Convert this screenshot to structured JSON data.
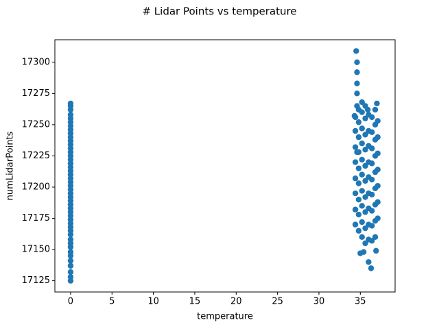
{
  "chart_data": {
    "type": "scatter",
    "title": "# Lidar Points vs temperature",
    "x_label": "temperature",
    "y_label": "numLidarPoints",
    "xlim": [
      -1.9,
      39.2
    ],
    "ylim": [
      17116,
      17318
    ],
    "xticks": [
      0,
      5,
      10,
      15,
      20,
      25,
      30,
      35
    ],
    "yticks": [
      17125,
      17150,
      17175,
      17200,
      17225,
      17250,
      17275,
      17300
    ],
    "grid": false,
    "color": "#1f77b4",
    "x": [
      0,
      0,
      0,
      0,
      0,
      0,
      0,
      0,
      0,
      0,
      0,
      0,
      0,
      0,
      0,
      0,
      0,
      0,
      0,
      0,
      0,
      0,
      0,
      0,
      0,
      0,
      0,
      0,
      0,
      0,
      0,
      0,
      0,
      0,
      0,
      0,
      0,
      0,
      0,
      0,
      0,
      0,
      0,
      0,
      0,
      0,
      34.4,
      34.4,
      34.4,
      34.4,
      34.4,
      34.4,
      34.4,
      34.4,
      34.6,
      34.6,
      34.6,
      34.6,
      34.6,
      34.5,
      34.8,
      34.8,
      34.8,
      34.8,
      34.8,
      34.8,
      34.8,
      34.8,
      34.8,
      35.2,
      35.2,
      35.2,
      35.2,
      35.2,
      35.2,
      35.2,
      35.2,
      35.2,
      35.2,
      35.6,
      35.6,
      35.6,
      35.6,
      35.6,
      35.6,
      35.6,
      35.6,
      35.6,
      35.6,
      36.0,
      36.0,
      36.0,
      36.0,
      36.0,
      36.0,
      36.0,
      36.0,
      36.0,
      36.4,
      36.4,
      36.4,
      36.4,
      36.4,
      36.4,
      36.4,
      36.4,
      36.4,
      36.8,
      36.8,
      36.8,
      36.8,
      36.8,
      36.8,
      36.8,
      36.8,
      36.8,
      37.1,
      37.1,
      37.1,
      37.1,
      37.1,
      37.1,
      37.1,
      35.0,
      35.4,
      36.0,
      36.3,
      36.9,
      37.0,
      34.3,
      34.6,
      35.9
    ],
    "y": [
      17125,
      17128,
      17132,
      17137,
      17141,
      17145,
      17148,
      17152,
      17155,
      17158,
      17162,
      17165,
      17168,
      17171,
      17174,
      17177,
      17180,
      17183,
      17186,
      17189,
      17192,
      17195,
      17198,
      17201,
      17204,
      17207,
      17210,
      17213,
      17216,
      17219,
      17222,
      17225,
      17228,
      17231,
      17234,
      17237,
      17240,
      17243,
      17246,
      17249,
      17252,
      17255,
      17258,
      17262,
      17265,
      17267,
      17170,
      17182,
      17195,
      17207,
      17220,
      17232,
      17245,
      17256,
      17265,
      17275,
      17283,
      17292,
      17300,
      17309,
      17165,
      17178,
      17190,
      17203,
      17215,
      17228,
      17240,
      17252,
      17262,
      17160,
      17172,
      17185,
      17197,
      17210,
      17222,
      17235,
      17247,
      17260,
      17268,
      17155,
      17167,
      17180,
      17192,
      17205,
      17217,
      17230,
      17242,
      17255,
      17265,
      17158,
      17170,
      17183,
      17195,
      17208,
      17220,
      17233,
      17245,
      17258,
      17157,
      17169,
      17181,
      17194,
      17206,
      17219,
      17231,
      17244,
      17256,
      17160,
      17173,
      17186,
      17199,
      17212,
      17225,
      17238,
      17250,
      17262,
      17175,
      17188,
      17201,
      17214,
      17227,
      17240,
      17253,
      17147,
      17148,
      17140,
      17135,
      17149,
      17267,
      17257,
      17228,
      17262
    ]
  }
}
